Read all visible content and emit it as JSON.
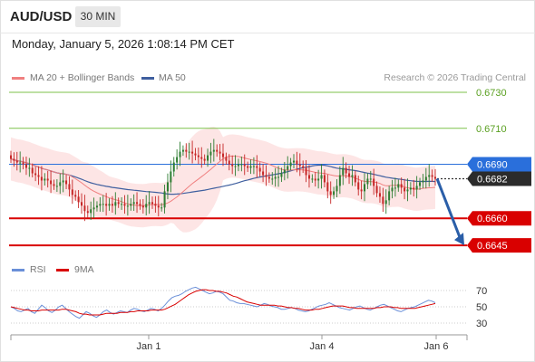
{
  "header": {
    "symbol": "AUD/USD",
    "timeframe": "30 MIN",
    "datetime": "Monday, January 5, 2026 1:08:14 PM CET"
  },
  "legend": {
    "ma20_label": "MA 20 + Bollinger Bands",
    "ma50_label": "MA 50",
    "rsi_label": "RSI",
    "rsi_ma_label": "9MA",
    "credit": "Research © 2026 Trading Central"
  },
  "colors": {
    "bull_candle": "#2e7d32",
    "bear_candle": "#c62828",
    "ma20": "#f08080",
    "ma50": "#3f5f9f",
    "bands_fill": "#fde0e0",
    "resistance": "#7cc24a",
    "support": "#d90000",
    "current_price": "#2a6fdb",
    "arrow": "#2a5ea8",
    "rsi": "#6a8fd8",
    "rsi_ma": "#d90000"
  },
  "chart_data": [
    {
      "type": "candlestick",
      "title": "AUD/USD 30 MIN",
      "x_ticks": [
        "Jan 1",
        "Jan 4",
        "Jan 6"
      ],
      "ylim": [
        0.6638,
        0.6733
      ],
      "current_price": 0.6682,
      "levels": [
        {
          "value": 0.673,
          "label": "0.6730",
          "kind": "resistance"
        },
        {
          "value": 0.671,
          "label": "0.6710",
          "kind": "resistance"
        },
        {
          "value": 0.669,
          "label": "0.6690",
          "kind": "pivot"
        },
        {
          "value": 0.666,
          "label": "0.6660",
          "kind": "support"
        },
        {
          "value": 0.6645,
          "label": "0.6645",
          "kind": "support"
        }
      ],
      "forecast_arrow": {
        "from": 0.6682,
        "to": 0.6645
      },
      "indicators": [
        "MA 20 + Bollinger Bands",
        "MA 50"
      ],
      "closes": [
        0.6693,
        0.6692,
        0.6691,
        0.6691,
        0.669,
        0.6688,
        0.6688,
        0.6685,
        0.6684,
        0.6683,
        0.6681,
        0.6682,
        0.6681,
        0.6679,
        0.6678,
        0.6678,
        0.668,
        0.6681,
        0.6679,
        0.6676,
        0.6673,
        0.6672,
        0.6669,
        0.6667,
        0.6664,
        0.6663,
        0.6665,
        0.6666,
        0.6667,
        0.6668,
        0.6668,
        0.6667,
        0.6668,
        0.6667,
        0.6669,
        0.6668,
        0.6668,
        0.6667,
        0.6667,
        0.6668,
        0.6669,
        0.6668,
        0.6667,
        0.6666,
        0.6668,
        0.6669,
        0.6668,
        0.6667,
        0.6666,
        0.6666,
        0.6675,
        0.668,
        0.6686,
        0.6691,
        0.6694,
        0.6697,
        0.6698,
        0.6697,
        0.6697,
        0.6696,
        0.6695,
        0.6694,
        0.6693,
        0.6692,
        0.6695,
        0.6697,
        0.6698,
        0.6697,
        0.6696,
        0.6694,
        0.6692,
        0.669,
        0.6689,
        0.6689,
        0.669,
        0.669,
        0.6689,
        0.6688,
        0.6689,
        0.6689,
        0.6688,
        0.6686,
        0.6684,
        0.6683,
        0.6682,
        0.6682,
        0.6683,
        0.6683,
        0.6685,
        0.6687,
        0.6689,
        0.6691,
        0.6692,
        0.669,
        0.6689,
        0.6688,
        0.6684,
        0.6682,
        0.6682,
        0.6681,
        0.6682,
        0.6684,
        0.668,
        0.6675,
        0.6673,
        0.6675,
        0.6678,
        0.6684,
        0.6688,
        0.6685,
        0.6683,
        0.6684,
        0.668,
        0.6676,
        0.6675,
        0.6679,
        0.6682,
        0.6682,
        0.6678,
        0.6674,
        0.6672,
        0.6668,
        0.667,
        0.6675,
        0.6677,
        0.6677,
        0.6679,
        0.6677,
        0.6675,
        0.6676,
        0.6677,
        0.6676,
        0.6678,
        0.668,
        0.6681,
        0.6683,
        0.6684,
        0.6683,
        0.6682
      ]
    },
    {
      "type": "line",
      "title": "RSI",
      "series": [
        {
          "name": "RSI"
        },
        {
          "name": "9MA"
        }
      ],
      "y_ticks": [
        70,
        50,
        30
      ],
      "ylim": [
        20,
        80
      ],
      "rsi_values": [
        50,
        48,
        45,
        44,
        46,
        48,
        44,
        42,
        47,
        52,
        49,
        45,
        43,
        46,
        50,
        52,
        48,
        44,
        41,
        38,
        36,
        40,
        44,
        42,
        39,
        37,
        40,
        44,
        46,
        43,
        41,
        43,
        45,
        44,
        43,
        46,
        48,
        47,
        45,
        44,
        46,
        48,
        47,
        45,
        48,
        52,
        57,
        61,
        63,
        64,
        66,
        69,
        71,
        73,
        74,
        72,
        70,
        68,
        66,
        67,
        69,
        68,
        66,
        62,
        58,
        57,
        55,
        54,
        54,
        53,
        52,
        51,
        50,
        52,
        54,
        53,
        51,
        50,
        49,
        47,
        47,
        48,
        49,
        48,
        46,
        45,
        44,
        45,
        47,
        49,
        51,
        52,
        53,
        55,
        53,
        51,
        49,
        48,
        47,
        46,
        48,
        50,
        51,
        49,
        47,
        46,
        48,
        50,
        52,
        53,
        51,
        49,
        47,
        45,
        44,
        46,
        48,
        49,
        50,
        52,
        54,
        56,
        58,
        57,
        55
      ],
      "ma_values": [
        50,
        49,
        48,
        47,
        46,
        46,
        45,
        45,
        45,
        46,
        46,
        46,
        46,
        46,
        46,
        47,
        47,
        46,
        45,
        44,
        42,
        41,
        41,
        40,
        40,
        40,
        40,
        41,
        42,
        42,
        42,
        42,
        43,
        43,
        43,
        44,
        44,
        45,
        45,
        45,
        45,
        46,
        46,
        46,
        46,
        47,
        49,
        51,
        53,
        56,
        59,
        62,
        65,
        67,
        69,
        70,
        71,
        71,
        70,
        70,
        69,
        69,
        68,
        67,
        65,
        63,
        62,
        60,
        58,
        56,
        55,
        54,
        53,
        52,
        52,
        52,
        52,
        52,
        51,
        51,
        50,
        49,
        49,
        48,
        48,
        47,
        46,
        46,
        46,
        47,
        47,
        48,
        49,
        50,
        51,
        51,
        51,
        51,
        50,
        49,
        49,
        48,
        48,
        48,
        48,
        48,
        48,
        49,
        49,
        50,
        50,
        50,
        49,
        49,
        48,
        48,
        48,
        48,
        48,
        49,
        50,
        51,
        52,
        53,
        54
      ]
    }
  ]
}
